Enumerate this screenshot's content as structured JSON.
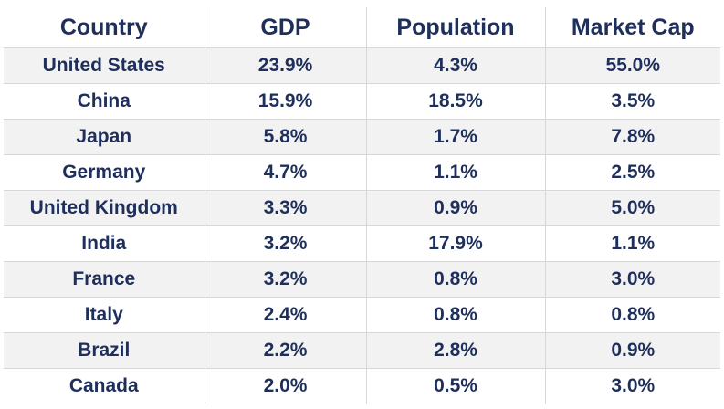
{
  "chart_data": {
    "type": "table",
    "columns": [
      "Country",
      "GDP",
      "Population",
      "Market Cap"
    ],
    "rows": [
      [
        "United States",
        "23.9%",
        "4.3%",
        "55.0%"
      ],
      [
        "China",
        "15.9%",
        "18.5%",
        "3.5%"
      ],
      [
        "Japan",
        "5.8%",
        "1.7%",
        "7.8%"
      ],
      [
        "Germany",
        "4.7%",
        "1.1%",
        "2.5%"
      ],
      [
        "United Kingdom",
        "3.3%",
        "0.9%",
        "5.0%"
      ],
      [
        "India",
        "3.2%",
        "17.9%",
        "1.1%"
      ],
      [
        "France",
        "3.2%",
        "0.8%",
        "3.0%"
      ],
      [
        "Italy",
        "2.4%",
        "0.8%",
        "0.8%"
      ],
      [
        "Brazil",
        "2.2%",
        "2.8%",
        "0.9%"
      ],
      [
        "Canada",
        "2.0%",
        "0.5%",
        "3.0%"
      ]
    ]
  },
  "colors": {
    "text": "#1f2f5b",
    "stripe": "#f2f2f2",
    "grid": "#d7d7d7",
    "background": "#ffffff"
  }
}
